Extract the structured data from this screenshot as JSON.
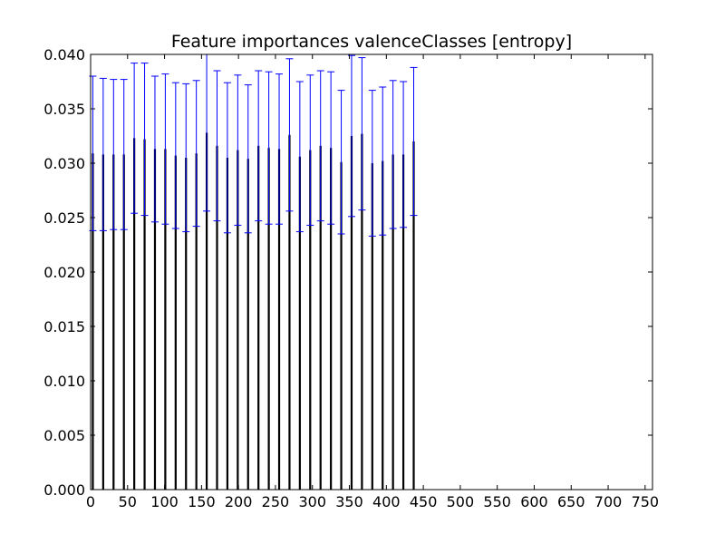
{
  "chart_data": {
    "type": "bar",
    "title": "Feature importances valenceClasses [entropy]",
    "xlabel": "",
    "ylabel": "",
    "xlim": [
      0,
      760
    ],
    "ylim": [
      0,
      0.04
    ],
    "x_ticks": [
      0,
      50,
      100,
      150,
      200,
      250,
      300,
      350,
      400,
      450,
      500,
      550,
      600,
      650,
      700,
      750
    ],
    "x_tick_labels": [
      "0",
      "50",
      "100",
      "150",
      "200",
      "250",
      "300",
      "350",
      "400",
      "450",
      "500",
      "550",
      "600",
      "650",
      "700",
      "750"
    ],
    "y_ticks": [
      0,
      0.005,
      0.01,
      0.015,
      0.02,
      0.025,
      0.03,
      0.035,
      0.04
    ],
    "y_tick_labels": [
      "0.000",
      "0.005",
      "0.010",
      "0.015",
      "0.020",
      "0.025",
      "0.030",
      "0.035",
      "0.040"
    ],
    "grid": false,
    "bar_color": "#000000",
    "error_color": "#0000ff",
    "series": [
      {
        "x": [
          3,
          17,
          31,
          45,
          59,
          73,
          87,
          101,
          115,
          129,
          143,
          157,
          171,
          185,
          199,
          213,
          227,
          241,
          255,
          269,
          283,
          297,
          311,
          325,
          339,
          353,
          367,
          381,
          395,
          409,
          423,
          437
        ],
        "values": [
          0.0309,
          0.0308,
          0.0308,
          0.0308,
          0.0323,
          0.0322,
          0.0313,
          0.0313,
          0.0307,
          0.0305,
          0.0309,
          0.0328,
          0.0316,
          0.0305,
          0.0312,
          0.0304,
          0.0316,
          0.0314,
          0.0313,
          0.0326,
          0.0306,
          0.0312,
          0.0316,
          0.0314,
          0.0301,
          0.0325,
          0.0327,
          0.03,
          0.0302,
          0.0308,
          0.0308,
          0.032
        ],
        "errors": [
          0.0071,
          0.007,
          0.0069,
          0.0069,
          0.0069,
          0.007,
          0.0067,
          0.0069,
          0.0067,
          0.0068,
          0.0067,
          0.0072,
          0.0069,
          0.0069,
          0.0069,
          0.0068,
          0.0069,
          0.007,
          0.0069,
          0.007,
          0.0069,
          0.0069,
          0.0069,
          0.007,
          0.0066,
          0.0074,
          0.007,
          0.0067,
          0.0068,
          0.0068,
          0.0067,
          0.0068
        ]
      }
    ]
  }
}
